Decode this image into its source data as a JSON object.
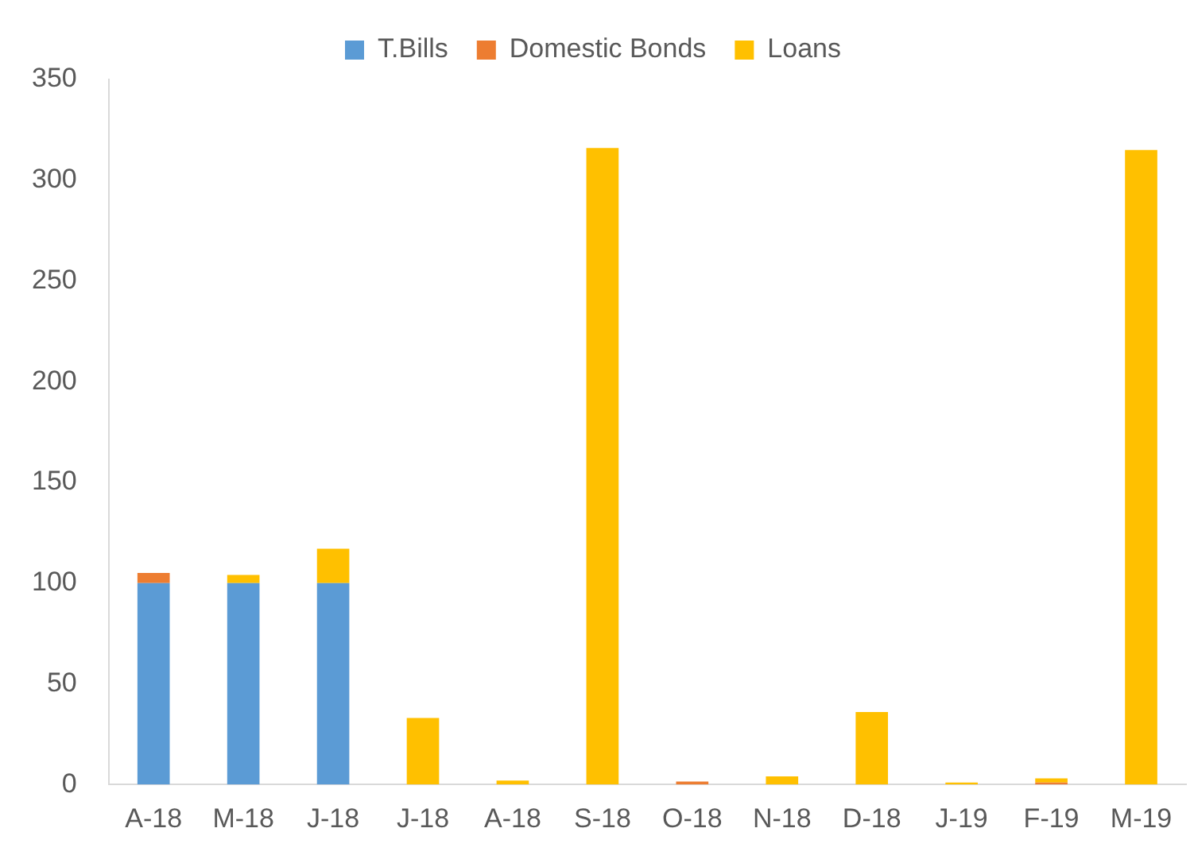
{
  "chart_data": {
    "type": "bar",
    "stacked": true,
    "categories": [
      "A-18",
      "M-18",
      "J-18",
      "J-18",
      "A-18",
      "S-18",
      "O-18",
      "N-18",
      "D-18",
      "J-19",
      "F-19",
      "M-19"
    ],
    "series": [
      {
        "name": "T.Bills",
        "color": "#5b9bd5",
        "values": [
          100,
          100,
          100,
          0,
          0,
          0,
          0,
          0,
          0,
          0,
          0,
          0
        ]
      },
      {
        "name": "Domestic Bonds",
        "color": "#ed7d31",
        "values": [
          5,
          0,
          0,
          0,
          0,
          0,
          1.5,
          0,
          0,
          0,
          1,
          0
        ]
      },
      {
        "name": "Loans",
        "color": "#ffc000",
        "values": [
          0,
          4,
          17,
          33,
          2,
          316,
          0,
          4,
          36,
          1,
          2,
          315
        ]
      }
    ],
    "ylim": [
      0,
      350
    ],
    "yticks": [
      0,
      50,
      100,
      150,
      200,
      250,
      300,
      350
    ],
    "grid": false,
    "legend": "top"
  }
}
